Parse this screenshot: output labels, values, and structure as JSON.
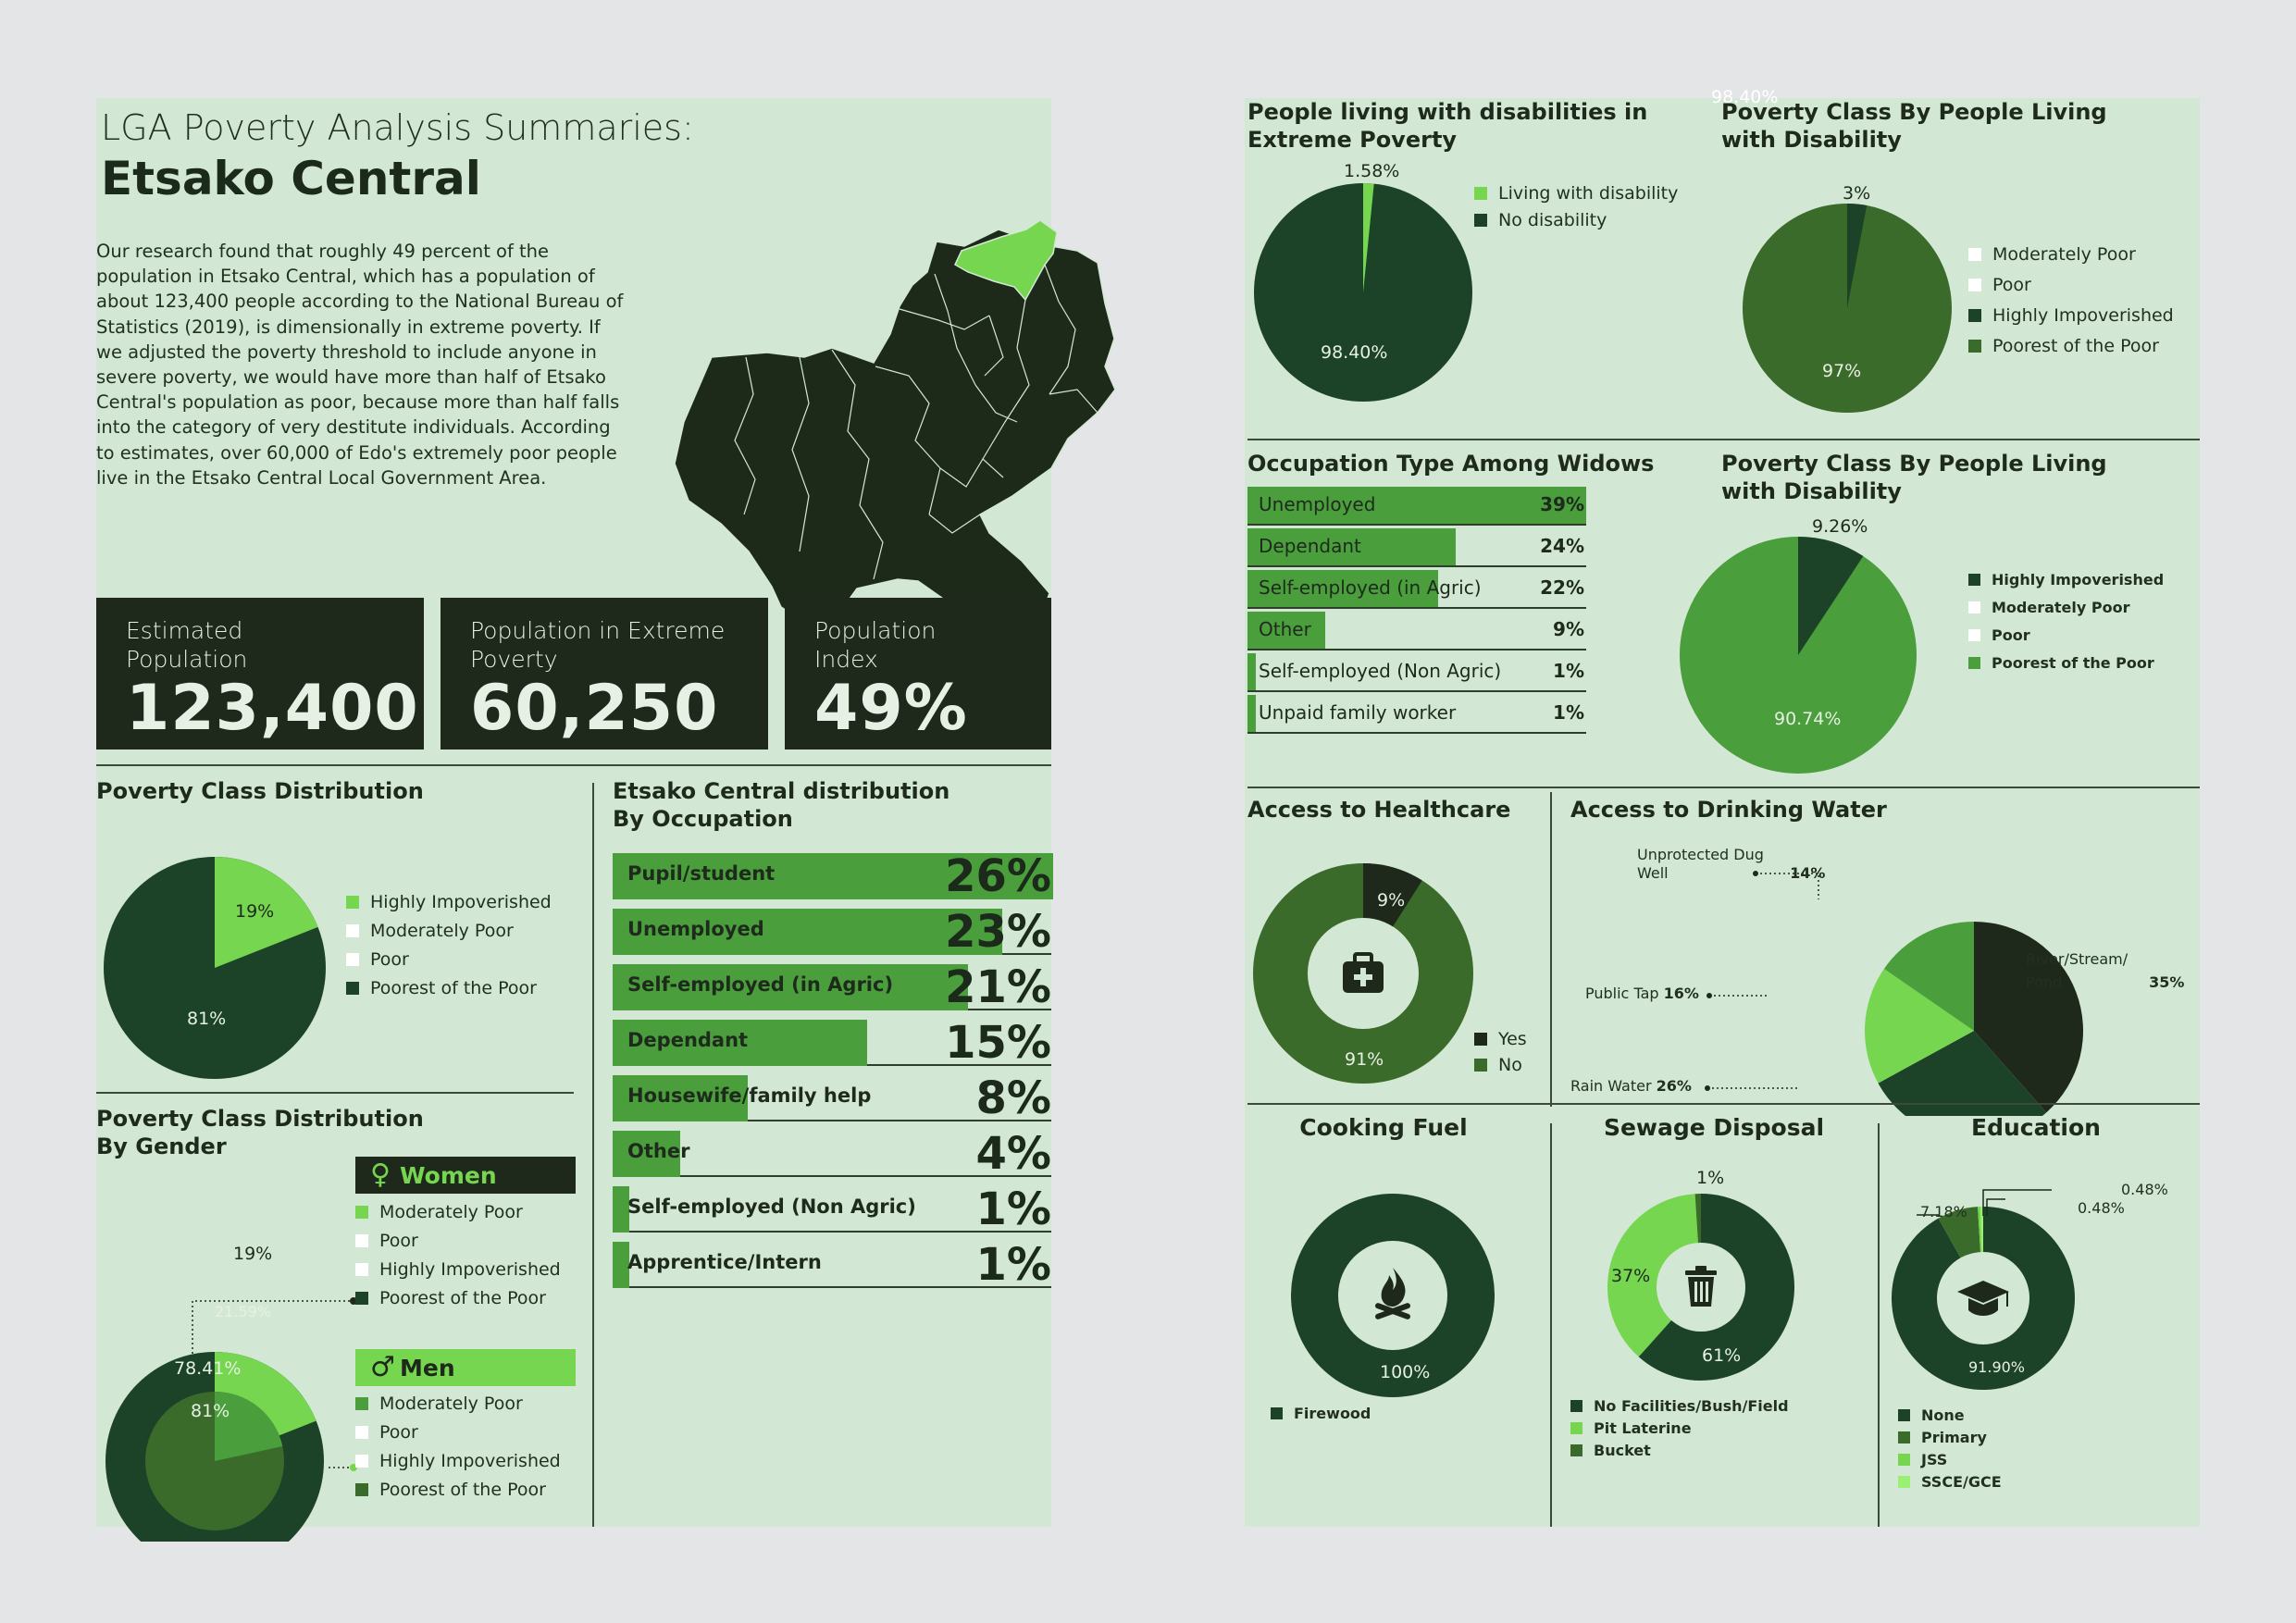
{
  "header": {
    "kicker": "LGA Poverty Analysis Summaries:",
    "title": "Etsako Central",
    "paragraph": "Our research found that roughly 49 percent of the population in Etsako Central, which has a population of about 123,400 people according to the National Bureau of Statistics (2019), is dimensionally in extreme poverty. If we adjusted the poverty threshold to include anyone in severe poverty, we would have more than half of Etsako Central's population as poor, because more than half falls into the category of very destitute individuals. According to estimates, over 60,000 of Edo's extremely poor people live in the Etsako Central Local Government Area."
  },
  "stats": [
    {
      "label": "Estimated\nPopulation",
      "value": "123,400"
    },
    {
      "label": "Population in Extreme\nPoverty",
      "value": "60,250"
    },
    {
      "label": "Population\nIndex",
      "value": "49%"
    }
  ],
  "titles": {
    "poverty_class": "Poverty Class Distribution",
    "by_occupation": "Etsako Central distribution\nBy Occupation",
    "by_gender": "Poverty Class Distribution\nBy Gender",
    "disab_extreme": "People living with disabilities in\nExtreme Poverty",
    "class_disab_1": "Poverty Class By People Living\nwith Disability",
    "widows": "Occupation Type Among Widows",
    "class_disab_2": "Poverty Class By People Living\nwith Disability",
    "healthcare": "Access to Healthcare",
    "water": "Access to Drinking Water",
    "cooking": "Cooking Fuel",
    "sewage": "Sewage Disposal",
    "education": "Education"
  },
  "gender_tags": {
    "women": "Women",
    "men": "Men"
  },
  "stray_text": "98.40%",
  "colors": {
    "page": "#d3e8d4",
    "dark": "#1e291c",
    "darkgreen": "#1c4328",
    "midgreen": "#3a6b2a",
    "bargreen": "#4a9e3c",
    "lime": "#76d650",
    "white": "#ffffff"
  },
  "chart_data": [
    {
      "id": "poverty_class",
      "type": "pie",
      "title": "Poverty Class Distribution",
      "labels": [
        "19%",
        "81%"
      ],
      "values": [
        19,
        81
      ],
      "legend": [
        "Highly Impoverished",
        "Moderately Poor",
        "Poor",
        "Poorest of the Poor"
      ],
      "legend_colors": [
        "#76d650",
        "#ffffff",
        "#ffffff",
        "#1c4328"
      ]
    },
    {
      "id": "occupation",
      "type": "bar",
      "title": "Etsako Central distribution By Occupation",
      "categories": [
        "Pupil/student",
        "Unemployed",
        "Self-employed (in Agric)",
        "Dependant",
        "Housewife/family help",
        "Other",
        "Self-employed (Non Agric)",
        "Apprentice/Intern"
      ],
      "values": [
        26,
        23,
        21,
        15,
        8,
        4,
        1,
        1
      ],
      "labels": [
        "26%",
        "23%",
        "21%",
        "15%",
        "8%",
        "4%",
        "1%",
        "1%"
      ]
    },
    {
      "id": "gender",
      "type": "pie",
      "title": "Poverty Class Distribution By Gender",
      "series": [
        {
          "name": "Women",
          "values": [
            19,
            81
          ],
          "labels": [
            "19%",
            "81%"
          ]
        },
        {
          "name": "Men",
          "values": [
            21.59,
            78.41
          ],
          "labels": [
            "21.59%",
            "78.41%"
          ]
        }
      ],
      "legend_women": [
        "Moderately Poor",
        "Poor",
        "Highly Impoverished",
        "Poorest of the Poor"
      ],
      "legend_women_colors": [
        "#76d650",
        "#ffffff",
        "#ffffff",
        "#1c4328"
      ],
      "legend_men": [
        "Moderately Poor",
        "Poor",
        "Highly Impoverished",
        "Poorest of the Poor"
      ],
      "legend_men_colors": [
        "#4a9e3c",
        "#ffffff",
        "#ffffff",
        "#3a6b2a"
      ]
    },
    {
      "id": "disab_extreme",
      "type": "pie",
      "title": "People living with disabilities in Extreme Poverty",
      "values": [
        1.58,
        98.4
      ],
      "labels": [
        "1.58%",
        "98.40%"
      ],
      "legend": [
        "Living with disability",
        "No disability"
      ],
      "legend_colors": [
        "#76d650",
        "#1c4328"
      ]
    },
    {
      "id": "class_disab_1",
      "type": "pie",
      "title": "Poverty Class By People Living with Disability",
      "values": [
        3,
        97
      ],
      "labels": [
        "3%",
        "97%"
      ],
      "legend": [
        "Moderately Poor",
        "Poor",
        "Highly Impoverished",
        "Poorest of the Poor"
      ],
      "legend_colors": [
        "#ffffff",
        "#ffffff",
        "#1c4328",
        "#3a6b2a"
      ]
    },
    {
      "id": "widows",
      "type": "bar",
      "title": "Occupation Type Among Widows",
      "categories": [
        "Unemployed",
        "Dependant",
        "Self-employed (in Agric)",
        "Other",
        "Self-employed (Non Agric)",
        "Unpaid family worker"
      ],
      "values": [
        39,
        24,
        22,
        9,
        1,
        1
      ],
      "labels": [
        "39%",
        "24%",
        "22%",
        "9%",
        "1%",
        "1%"
      ]
    },
    {
      "id": "class_disab_2",
      "type": "pie",
      "title": "Poverty Class By People Living with Disability",
      "values": [
        9.26,
        90.74
      ],
      "labels": [
        "9.26%",
        "90.74%"
      ],
      "legend": [
        "Highly Impoverished",
        "Moderately Poor",
        "Poor",
        "Poorest of the Poor"
      ],
      "legend_colors": [
        "#1c4328",
        "#ffffff",
        "#ffffff",
        "#4a9e3c"
      ]
    },
    {
      "id": "healthcare",
      "type": "pie",
      "title": "Access to Healthcare",
      "values": [
        9,
        91
      ],
      "labels": [
        "9%",
        "91%"
      ],
      "legend": [
        "Yes",
        "No"
      ],
      "legend_colors": [
        "#1e291c",
        "#3a6b2a"
      ]
    },
    {
      "id": "water",
      "type": "pie",
      "title": "Access to Drinking Water",
      "categories": [
        "River/Stream/ Pond",
        "Rain Water",
        "Public Tap",
        "Unprotected Dug Well"
      ],
      "values": [
        35,
        26,
        16,
        14
      ],
      "labels": [
        "35%",
        "26%",
        "16%",
        "14%"
      ]
    },
    {
      "id": "cooking",
      "type": "pie",
      "title": "Cooking Fuel",
      "values": [
        100
      ],
      "labels": [
        "100%"
      ],
      "legend": [
        "Firewood"
      ],
      "legend_colors": [
        "#1c4328"
      ]
    },
    {
      "id": "sewage",
      "type": "pie",
      "title": "Sewage Disposal",
      "values": [
        61,
        37,
        1
      ],
      "labels": [
        "61%",
        "37%",
        "1%"
      ],
      "legend": [
        "No Facilities/Bush/Field",
        "Pit Laterine",
        "Bucket"
      ],
      "legend_colors": [
        "#1c4328",
        "#76d650",
        "#3a6b2a"
      ]
    },
    {
      "id": "education",
      "type": "pie",
      "title": "Education",
      "values": [
        91.9,
        7.18,
        0.48,
        0.48
      ],
      "labels": [
        "91.90%",
        "7.18%",
        "0.48%",
        "0.48%"
      ],
      "legend": [
        "None",
        "Primary",
        "JSS",
        "SSCE/GCE"
      ],
      "legend_colors": [
        "#1c4328",
        "#3a6b2a",
        "#76d650",
        "#9af070"
      ]
    }
  ]
}
